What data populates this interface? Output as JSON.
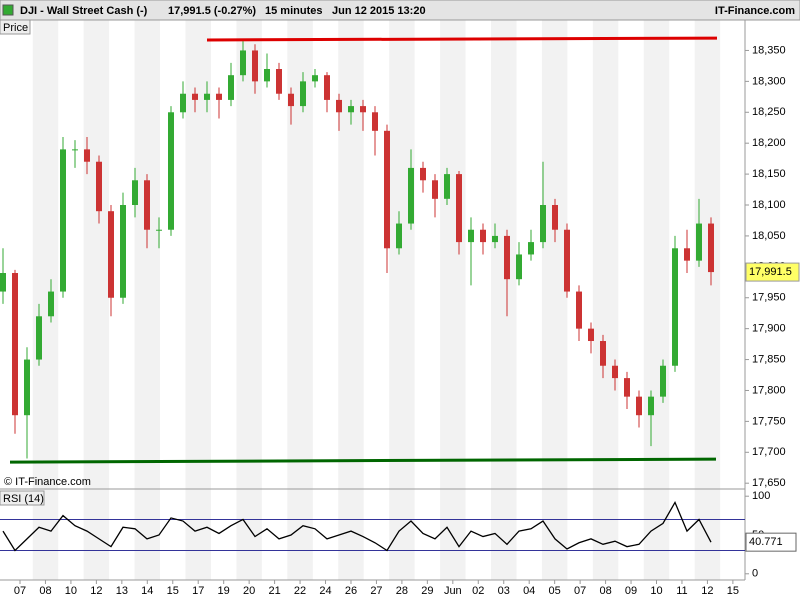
{
  "header": {
    "symbol": "DJI - Wall Street Cash (-)",
    "quote": "17,991.5 (-0.27%)",
    "interval": "15 minutes",
    "timestamp": "Jun 12 2015 13:20",
    "source": "IT-Finance.com"
  },
  "chart_data": [
    {
      "type": "candlestick",
      "panel_label": "Price",
      "watermark": "© IT-Finance.com",
      "x_axis_labels": [
        "07",
        "08",
        "10",
        "12",
        "13",
        "14",
        "15",
        "17",
        "19",
        "20",
        "21",
        "22",
        "24",
        "26",
        "27",
        "28",
        "29",
        "Jun",
        "02",
        "03",
        "04",
        "05",
        "07",
        "08",
        "09",
        "10",
        "11",
        "12",
        "15"
      ],
      "open": [
        17960,
        17990,
        17760,
        17850,
        17920,
        17960,
        18190,
        18190,
        18170,
        18090,
        17950,
        18100,
        18140,
        18060,
        18060,
        18250,
        18280,
        18270,
        18280,
        18270,
        18310,
        18350,
        18300,
        18320,
        18280,
        18260,
        18300,
        18310,
        18270,
        18250,
        18260,
        18250,
        18220,
        18030,
        18070,
        18160,
        18140,
        18110,
        18150,
        18040,
        18060,
        18040,
        18050,
        17980,
        18020,
        18040,
        18100,
        18060,
        17960,
        17900,
        17880,
        17840,
        17820,
        17790,
        17760,
        17790,
        17840,
        18030,
        18010,
        18070
      ],
      "high": [
        18030,
        17995,
        17870,
        17940,
        17980,
        18210,
        18205,
        18210,
        18180,
        18100,
        18120,
        18160,
        18150,
        18080,
        18260,
        18300,
        18290,
        18300,
        18290,
        18330,
        18365,
        18360,
        18345,
        18330,
        18290,
        18315,
        18320,
        18315,
        18280,
        18270,
        18270,
        18260,
        18230,
        18090,
        18190,
        18170,
        18150,
        18160,
        18155,
        18080,
        18070,
        18070,
        18060,
        18040,
        18060,
        18170,
        18110,
        18070,
        17970,
        17910,
        17890,
        17850,
        17830,
        17800,
        17800,
        17850,
        18050,
        18060,
        18110,
        18080
      ],
      "low": [
        17940,
        17730,
        17690,
        17840,
        17910,
        17950,
        18160,
        18150,
        18070,
        17920,
        17940,
        18080,
        18030,
        18030,
        18050,
        18240,
        18250,
        18250,
        18240,
        18260,
        18300,
        18280,
        18290,
        18270,
        18230,
        18250,
        18290,
        18250,
        18220,
        18230,
        18220,
        18180,
        17990,
        18020,
        18060,
        18120,
        18080,
        18100,
        18020,
        17970,
        18020,
        18030,
        17920,
        17970,
        18010,
        18030,
        18040,
        17950,
        17880,
        17860,
        17820,
        17800,
        17770,
        17740,
        17710,
        17780,
        17830,
        17990,
        18000,
        17970
      ],
      "close": [
        17990,
        17760,
        17850,
        17920,
        17960,
        18190,
        18190,
        18170,
        18090,
        17950,
        18100,
        18140,
        18060,
        18060,
        18250,
        18280,
        18270,
        18280,
        18270,
        18310,
        18350,
        18300,
        18320,
        18280,
        18260,
        18300,
        18310,
        18270,
        18250,
        18260,
        18250,
        18220,
        18030,
        18070,
        18160,
        18140,
        18110,
        18150,
        18040,
        18060,
        18040,
        18050,
        17980,
        18020,
        18040,
        18100,
        18060,
        17960,
        17900,
        17880,
        17840,
        17820,
        17790,
        17760,
        17790,
        17840,
        18030,
        18010,
        18070,
        17991.5
      ],
      "up_color": "#33aa33",
      "down_color": "#cc3333",
      "ylim": [
        17639,
        18375
      ],
      "yticks": [
        {
          "value": 17650,
          "label": "17,650"
        },
        {
          "value": 17700,
          "label": "17,700"
        },
        {
          "value": 17750,
          "label": "17,750"
        },
        {
          "value": 17800,
          "label": "17,800"
        },
        {
          "value": 17850,
          "label": "17,850"
        },
        {
          "value": 17900,
          "label": "17,900"
        },
        {
          "value": 17950,
          "label": "17,950"
        },
        {
          "value": 18000,
          "label": "18,000"
        },
        {
          "value": 18050,
          "label": "18,050"
        },
        {
          "value": 18100,
          "label": "18,100"
        },
        {
          "value": 18150,
          "label": "18,150"
        },
        {
          "value": 18200,
          "label": "18,200"
        },
        {
          "value": 18250,
          "label": "18,250"
        },
        {
          "value": 18300,
          "label": "18,300"
        },
        {
          "value": 18350,
          "label": "18,350"
        }
      ],
      "last": {
        "value": 17991.5,
        "label": "17,991.5"
      },
      "trendlines": [
        {
          "color": "#dd0000",
          "values": [
            18367,
            18370
          ]
        },
        {
          "color": "#006600",
          "values": [
            17684,
            17689
          ]
        }
      ]
    },
    {
      "type": "line",
      "panel_label": "RSI (14)",
      "color": "#000000",
      "values": [
        55,
        30,
        45,
        60,
        55,
        75,
        62,
        55,
        45,
        35,
        60,
        58,
        45,
        50,
        72,
        68,
        55,
        60,
        52,
        62,
        70,
        48,
        58,
        45,
        50,
        62,
        58,
        45,
        50,
        55,
        48,
        40,
        30,
        55,
        68,
        52,
        45,
        60,
        35,
        55,
        48,
        52,
        38,
        55,
        58,
        68,
        45,
        32,
        40,
        45,
        38,
        42,
        35,
        38,
        55,
        65,
        92,
        55,
        70,
        40.771
      ],
      "ylim": [
        -8,
        108
      ],
      "yticks": [
        0,
        50,
        100
      ],
      "levels": [
        30,
        70
      ],
      "level_color": "#333399",
      "last": 40.771
    }
  ]
}
